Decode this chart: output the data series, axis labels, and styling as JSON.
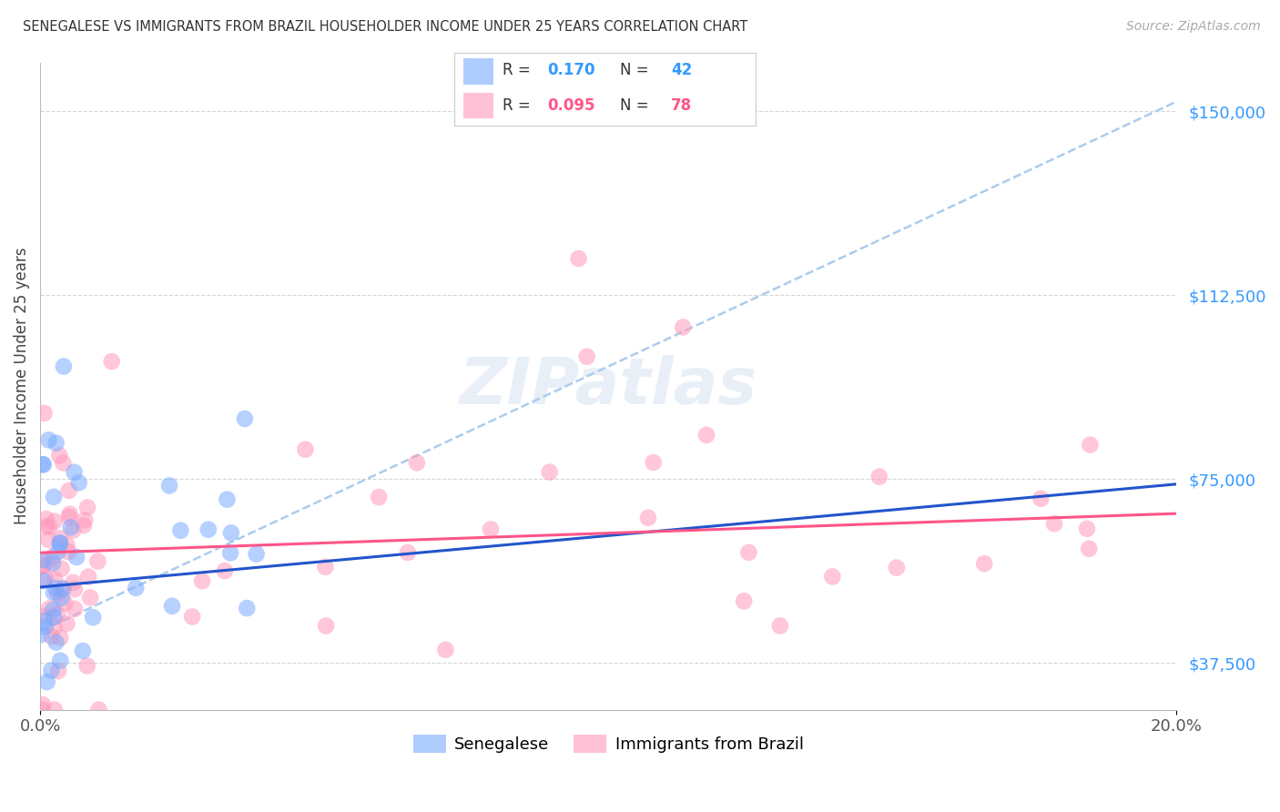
{
  "title": "SENEGALESE VS IMMIGRANTS FROM BRAZIL HOUSEHOLDER INCOME UNDER 25 YEARS CORRELATION CHART",
  "source": "Source: ZipAtlas.com",
  "ylabel": "Householder Income Under 25 years",
  "xlim": [
    0.0,
    0.2
  ],
  "ylim": [
    28000,
    160000
  ],
  "yticks": [
    37500,
    75000,
    112500,
    150000
  ],
  "ytick_labels": [
    "$37,500",
    "$75,000",
    "$112,500",
    "$150,000"
  ],
  "background_color": "#ffffff",
  "grid_color": "#cccccc",
  "senegalese_color": "#7aaaff",
  "brazil_color": "#ff99bb",
  "senegalese_trend_color": "#2255cc",
  "brazil_trend_color": "#ff5588",
  "dashed_trend_color": "#aaccee",
  "senegalese_N": 42,
  "brazil_N": 78,
  "senegalese_R": 0.17,
  "brazil_R": 0.095,
  "blue_trend_y0": 53000,
  "blue_trend_y1": 74000,
  "pink_trend_y0": 60000,
  "pink_trend_y1": 68000,
  "dash_trend_y0": 44000,
  "dash_trend_y1": 152000
}
